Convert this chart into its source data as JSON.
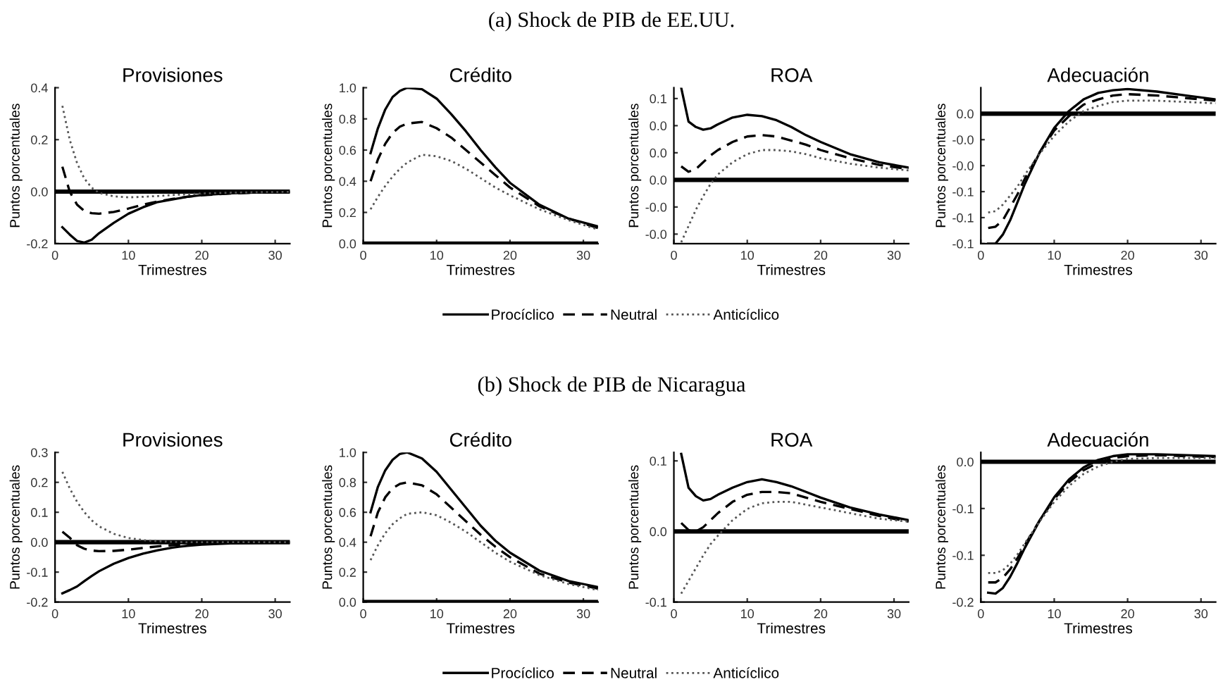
{
  "chart_data": [
    {
      "type": "line",
      "annotations": [
        "(a) Shock de PIB de EE.UU."
      ],
      "legend": "bottom",
      "title": "Provisiones",
      "xlabel": "Trimestres",
      "ylabel": "Puntos porcentuales",
      "x": [
        1,
        2,
        3,
        4,
        5,
        6,
        8,
        10,
        12,
        14,
        16,
        18,
        20,
        24,
        28,
        32
      ],
      "xlim": [
        0,
        32
      ],
      "xticks": [
        0,
        10,
        20,
        30
      ],
      "ylim": [
        -0.2,
        0.4
      ],
      "yticks": [
        {
          "value": -0.2,
          "label": "-0.2"
        },
        {
          "value": 0,
          "label": "0.0"
        },
        {
          "value": 0.2,
          "label": "0.2"
        },
        {
          "value": 0.4,
          "label": "0.4"
        }
      ],
      "ref_lines": [
        {
          "axis": "y",
          "value": 0,
          "color": "#000000"
        }
      ],
      "series": [
        {
          "name": "Procíclico",
          "color": "#000000",
          "line_style": "solid",
          "values": [
            -0.137,
            -0.165,
            -0.19,
            -0.196,
            -0.185,
            -0.16,
            -0.12,
            -0.085,
            -0.06,
            -0.04,
            -0.03,
            -0.02,
            -0.013,
            -0.006,
            -0.003,
            -0.001
          ]
        },
        {
          "name": "Neutral",
          "color": "#000000",
          "line_style": "dashed",
          "values": [
            0.096,
            0.0,
            -0.05,
            -0.075,
            -0.083,
            -0.085,
            -0.078,
            -0.065,
            -0.05,
            -0.038,
            -0.028,
            -0.02,
            -0.014,
            -0.007,
            -0.003,
            -0.001
          ]
        },
        {
          "name": "Anticíclico",
          "color": "#555555",
          "line_style": "dotted",
          "values": [
            0.33,
            0.2,
            0.11,
            0.05,
            0.015,
            -0.005,
            -0.018,
            -0.022,
            -0.02,
            -0.017,
            -0.013,
            -0.01,
            -0.007,
            -0.004,
            -0.002,
            -0.001
          ]
        }
      ]
    },
    {
      "type": "line",
      "title": "Crédito",
      "xlabel": "Trimestres",
      "ylabel": "Puntos porcentuales",
      "x": [
        1,
        2,
        3,
        4,
        5,
        6,
        8,
        10,
        12,
        14,
        16,
        18,
        20,
        24,
        28,
        32
      ],
      "xlim": [
        0,
        32
      ],
      "xticks": [
        0,
        10,
        20,
        30
      ],
      "ylim": [
        0,
        1.0
      ],
      "yticks": [
        {
          "value": 0,
          "label": "0.0"
        },
        {
          "value": 0.2,
          "label": "0.2"
        },
        {
          "value": 0.4,
          "label": "0.4"
        },
        {
          "value": 0.6,
          "label": "0.6"
        },
        {
          "value": 0.8,
          "label": "0.8"
        },
        {
          "value": 1.0,
          "label": "1.0"
        }
      ],
      "ref_lines": [
        {
          "axis": "y",
          "value": 0,
          "color": "#000000"
        }
      ],
      "series": [
        {
          "color": "#000000",
          "line_style": "solid",
          "values": [
            0.58,
            0.74,
            0.86,
            0.94,
            0.98,
            1.0,
            0.99,
            0.93,
            0.83,
            0.72,
            0.6,
            0.49,
            0.39,
            0.25,
            0.16,
            0.11
          ]
        },
        {
          "color": "#000000",
          "line_style": "dashed",
          "values": [
            0.4,
            0.54,
            0.64,
            0.71,
            0.75,
            0.77,
            0.78,
            0.74,
            0.68,
            0.6,
            0.52,
            0.44,
            0.36,
            0.24,
            0.16,
            0.1
          ]
        },
        {
          "color": "#555555",
          "line_style": "dotted",
          "values": [
            0.22,
            0.3,
            0.37,
            0.43,
            0.48,
            0.52,
            0.57,
            0.56,
            0.53,
            0.48,
            0.42,
            0.36,
            0.31,
            0.22,
            0.15,
            0.09
          ]
        }
      ]
    },
    {
      "type": "line",
      "title": "ROA",
      "xlabel": "Trimestres",
      "ylabel": "Puntos porcentuales",
      "x": [
        1,
        2,
        3,
        4,
        5,
        6,
        8,
        10,
        12,
        14,
        16,
        18,
        20,
        24,
        28,
        32
      ],
      "xlim": [
        0,
        32
      ],
      "xticks": [
        0,
        10,
        20,
        30
      ],
      "ylim": [
        -0.047,
        0.068
      ],
      "yticks": [
        {
          "value": -0.04,
          "label": "-0.0"
        },
        {
          "value": -0.02,
          "label": "-0.0"
        },
        {
          "value": 0,
          "label": "0.0"
        },
        {
          "value": 0.02,
          "label": "0.0"
        },
        {
          "value": 0.04,
          "label": "0.0"
        },
        {
          "value": 0.06,
          "label": "0.1"
        }
      ],
      "ref_lines": [
        {
          "axis": "y",
          "value": 0,
          "color": "#000000"
        }
      ],
      "series": [
        {
          "color": "#000000",
          "line_style": "solid",
          "values": [
            0.068,
            0.043,
            0.039,
            0.037,
            0.038,
            0.041,
            0.046,
            0.048,
            0.047,
            0.044,
            0.039,
            0.033,
            0.028,
            0.019,
            0.013,
            0.009
          ]
        },
        {
          "color": "#000000",
          "line_style": "dashed",
          "values": [
            0.01,
            0.006,
            0.008,
            0.013,
            0.018,
            0.022,
            0.028,
            0.032,
            0.033,
            0.032,
            0.029,
            0.026,
            0.022,
            0.016,
            0.011,
            0.008
          ]
        },
        {
          "color": "#555555",
          "line_style": "dotted",
          "values": [
            -0.046,
            -0.034,
            -0.022,
            -0.012,
            -0.003,
            0.004,
            0.013,
            0.019,
            0.022,
            0.022,
            0.021,
            0.019,
            0.016,
            0.012,
            0.009,
            0.007
          ]
        }
      ]
    },
    {
      "type": "line",
      "title": "Adecuación",
      "xlabel": "Trimestres",
      "ylabel": "Puntos porcentuales",
      "x": [
        1,
        2,
        3,
        4,
        5,
        6,
        8,
        10,
        12,
        14,
        16,
        18,
        20,
        24,
        28,
        32
      ],
      "xlim": [
        0,
        32
      ],
      "xticks": [
        0,
        10,
        20,
        30
      ],
      "ylim": [
        -0.1,
        0.02
      ],
      "yticks": [
        {
          "value": -0.1,
          "label": "-0.1"
        },
        {
          "value": -0.08,
          "label": "-0.1"
        },
        {
          "value": -0.06,
          "label": "-0.1"
        },
        {
          "value": -0.04,
          "label": "-0.0"
        },
        {
          "value": -0.02,
          "label": "-0.0"
        },
        {
          "value": 0,
          "label": "0.0"
        }
      ],
      "ref_lines": [
        {
          "axis": "y",
          "value": 0,
          "color": "#000000"
        }
      ],
      "series": [
        {
          "color": "#000000",
          "line_style": "solid",
          "values": [
            -0.1,
            -0.1,
            -0.093,
            -0.082,
            -0.068,
            -0.054,
            -0.03,
            -0.011,
            0.002,
            0.011,
            0.016,
            0.018,
            0.019,
            0.017,
            0.014,
            0.011
          ]
        },
        {
          "color": "#000000",
          "line_style": "dashed",
          "values": [
            -0.088,
            -0.087,
            -0.082,
            -0.072,
            -0.062,
            -0.05,
            -0.03,
            -0.013,
            -0.002,
            0.007,
            0.011,
            0.014,
            0.015,
            0.014,
            0.012,
            0.01
          ]
        },
        {
          "color": "#555555",
          "line_style": "dotted",
          "values": [
            -0.076,
            -0.075,
            -0.07,
            -0.063,
            -0.056,
            -0.047,
            -0.031,
            -0.017,
            -0.006,
            0.002,
            0.006,
            0.009,
            0.01,
            0.01,
            0.009,
            0.008
          ]
        }
      ]
    },
    {
      "type": "line",
      "annotations": [
        "(b) Shock de PIB de Nicaragua"
      ],
      "legend": "bottom",
      "title": "Provisiones",
      "xlabel": "Trimestres",
      "ylabel": "Puntos porcentuales",
      "x": [
        1,
        2,
        3,
        4,
        5,
        6,
        8,
        10,
        12,
        14,
        16,
        18,
        20,
        24,
        28,
        32
      ],
      "xlim": [
        0,
        32
      ],
      "xticks": [
        0,
        10,
        20,
        30
      ],
      "ylim": [
        -0.2,
        0.3
      ],
      "yticks": [
        {
          "value": -0.2,
          "label": "-0.2"
        },
        {
          "value": -0.1,
          "label": "-0.1"
        },
        {
          "value": 0,
          "label": "0.0"
        },
        {
          "value": 0.1,
          "label": "0.1"
        },
        {
          "value": 0.2,
          "label": "0.2"
        },
        {
          "value": 0.3,
          "label": "0.3"
        }
      ],
      "ref_lines": [
        {
          "axis": "y",
          "value": 0,
          "color": "#000000"
        }
      ],
      "series": [
        {
          "name": "Procíclico",
          "color": "#000000",
          "line_style": "solid",
          "values": [
            -0.171,
            -0.16,
            -0.148,
            -0.13,
            -0.113,
            -0.097,
            -0.072,
            -0.053,
            -0.038,
            -0.027,
            -0.018,
            -0.012,
            -0.008,
            -0.004,
            -0.002,
            -0.001
          ]
        },
        {
          "name": "Neutral",
          "color": "#000000",
          "line_style": "dashed",
          "values": [
            0.035,
            0.015,
            -0.01,
            -0.022,
            -0.028,
            -0.03,
            -0.029,
            -0.025,
            -0.019,
            -0.014,
            -0.01,
            -0.007,
            -0.005,
            -0.002,
            -0.001,
            0
          ]
        },
        {
          "name": "Anticíclico",
          "color": "#555555",
          "line_style": "dotted",
          "values": [
            0.235,
            0.18,
            0.135,
            0.1,
            0.073,
            0.053,
            0.028,
            0.014,
            0.007,
            0.003,
            0.001,
            0,
            0,
            0,
            0,
            0
          ]
        }
      ]
    },
    {
      "type": "line",
      "title": "Crédito",
      "xlabel": "Trimestres",
      "ylabel": "Puntos porcentuales",
      "x": [
        1,
        2,
        3,
        4,
        5,
        6,
        8,
        10,
        12,
        14,
        16,
        18,
        20,
        24,
        28,
        32
      ],
      "xlim": [
        0,
        32
      ],
      "xticks": [
        0,
        10,
        20,
        30
      ],
      "ylim": [
        0,
        1.0
      ],
      "yticks": [
        {
          "value": 0,
          "label": "0.0"
        },
        {
          "value": 0.2,
          "label": "0.2"
        },
        {
          "value": 0.4,
          "label": "0.4"
        },
        {
          "value": 0.6,
          "label": "0.6"
        },
        {
          "value": 0.8,
          "label": "0.8"
        },
        {
          "value": 1.0,
          "label": "1.0"
        }
      ],
      "ref_lines": [
        {
          "axis": "y",
          "value": 0,
          "color": "#000000"
        }
      ],
      "series": [
        {
          "color": "#000000",
          "line_style": "solid",
          "values": [
            0.6,
            0.77,
            0.88,
            0.95,
            0.99,
            1.0,
            0.96,
            0.87,
            0.75,
            0.63,
            0.51,
            0.41,
            0.33,
            0.21,
            0.14,
            0.1
          ]
        },
        {
          "color": "#000000",
          "line_style": "dashed",
          "values": [
            0.44,
            0.6,
            0.7,
            0.76,
            0.79,
            0.8,
            0.78,
            0.72,
            0.63,
            0.54,
            0.45,
            0.37,
            0.3,
            0.19,
            0.13,
            0.09
          ]
        },
        {
          "color": "#555555",
          "line_style": "dotted",
          "values": [
            0.28,
            0.38,
            0.46,
            0.52,
            0.56,
            0.59,
            0.6,
            0.58,
            0.53,
            0.47,
            0.4,
            0.33,
            0.27,
            0.18,
            0.12,
            0.08
          ]
        }
      ]
    },
    {
      "type": "line",
      "title": "ROA",
      "xlabel": "Trimestres",
      "ylabel": "Puntos porcentuales",
      "x": [
        1,
        2,
        3,
        4,
        5,
        6,
        8,
        10,
        12,
        14,
        16,
        18,
        20,
        24,
        28,
        32
      ],
      "xlim": [
        0,
        32
      ],
      "xticks": [
        0,
        10,
        20,
        30
      ],
      "ylim": [
        -0.05,
        0.056
      ],
      "yticks": [
        {
          "value": -0.05,
          "label": "-0.1"
        },
        {
          "value": 0,
          "label": "0.0"
        },
        {
          "value": 0.05,
          "label": "0.1"
        }
      ],
      "ref_lines": [
        {
          "axis": "y",
          "value": 0,
          "color": "#000000"
        }
      ],
      "series": [
        {
          "color": "#000000",
          "line_style": "solid",
          "values": [
            0.055,
            0.031,
            0.025,
            0.022,
            0.023,
            0.026,
            0.031,
            0.035,
            0.037,
            0.035,
            0.032,
            0.028,
            0.024,
            0.017,
            0.012,
            0.008
          ]
        },
        {
          "color": "#000000",
          "line_style": "dashed",
          "values": [
            0.006,
            0.001,
            0.0,
            0.003,
            0.008,
            0.013,
            0.021,
            0.026,
            0.028,
            0.028,
            0.027,
            0.024,
            0.021,
            0.016,
            0.011,
            0.007
          ]
        },
        {
          "color": "#555555",
          "line_style": "dotted",
          "values": [
            -0.044,
            -0.035,
            -0.026,
            -0.017,
            -0.009,
            -0.003,
            0.008,
            0.016,
            0.02,
            0.021,
            0.021,
            0.019,
            0.017,
            0.013,
            0.009,
            0.007
          ]
        }
      ]
    },
    {
      "type": "line",
      "title": "Adecuación",
      "xlabel": "Trimestres",
      "ylabel": "Puntos porcentuales",
      "x": [
        1,
        2,
        3,
        4,
        5,
        6,
        8,
        10,
        12,
        14,
        16,
        18,
        20,
        24,
        28,
        32
      ],
      "xlim": [
        0,
        32
      ],
      "xticks": [
        0,
        10,
        20,
        30
      ],
      "ylim": [
        -0.15,
        0.01
      ],
      "yticks": [
        {
          "value": -0.15,
          "label": "-0.2"
        },
        {
          "value": -0.1,
          "label": "-0.1"
        },
        {
          "value": -0.05,
          "label": "-0.1"
        },
        {
          "value": 0,
          "label": "0.0"
        }
      ],
      "ref_lines": [
        {
          "axis": "y",
          "value": 0,
          "color": "#000000"
        }
      ],
      "series": [
        {
          "color": "#000000",
          "line_style": "solid",
          "values": [
            -0.14,
            -0.141,
            -0.135,
            -0.123,
            -0.108,
            -0.092,
            -0.063,
            -0.038,
            -0.019,
            -0.006,
            0.002,
            0.006,
            0.008,
            0.008,
            0.007,
            0.006
          ]
        },
        {
          "color": "#000000",
          "line_style": "dashed",
          "values": [
            -0.129,
            -0.129,
            -0.124,
            -0.115,
            -0.103,
            -0.089,
            -0.063,
            -0.04,
            -0.022,
            -0.009,
            -0.001,
            0.004,
            0.006,
            0.007,
            0.006,
            0.005
          ]
        },
        {
          "color": "#555555",
          "line_style": "dotted",
          "values": [
            -0.119,
            -0.119,
            -0.116,
            -0.109,
            -0.099,
            -0.087,
            -0.064,
            -0.043,
            -0.026,
            -0.013,
            -0.005,
            0.0,
            0.003,
            0.004,
            0.004,
            0.004
          ]
        }
      ]
    }
  ]
}
